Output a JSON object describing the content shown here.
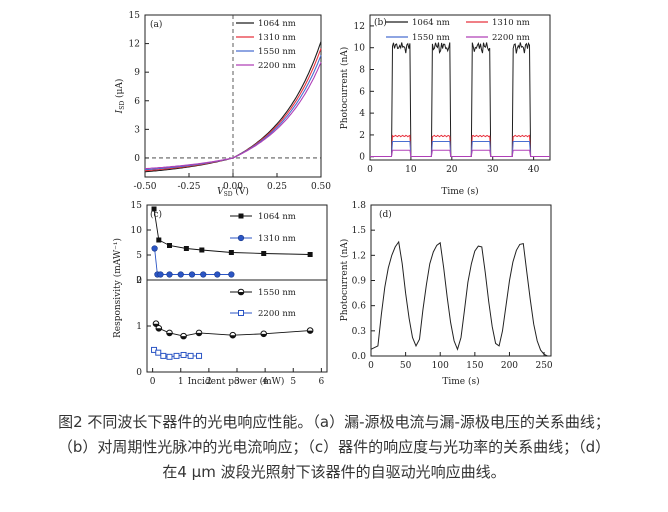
{
  "chart_data": [
    {
      "panel": "(a)",
      "type": "line",
      "xlabel_main": "V",
      "xlabel_sub": "SD",
      "xlabel_unit": " (V)",
      "ylabel_main": "I",
      "ylabel_sub": "SD",
      "ylabel_unit": " (μA)",
      "xlim": [
        -0.5,
        0.5
      ],
      "ylim": [
        -2,
        15
      ],
      "xticks": [
        "-0.50",
        "-0.25",
        "0.00",
        "0.25",
        "0.50"
      ],
      "yticks": [
        "0",
        "3",
        "6",
        "9",
        "12",
        "15"
      ],
      "legend": [
        "1064 nm",
        "1310 nm",
        "1550 nm",
        "2200 nm"
      ],
      "colors": [
        "#1f1f1f",
        "#e8333f",
        "#4a6fd0",
        "#b040b8"
      ],
      "curve_params": [
        {
          "a": 7.0,
          "b": 4.4,
          "c": 1.3,
          "d": 2.4
        },
        {
          "a": 6.5,
          "b": 4.4,
          "c": 1.2,
          "d": 2.4
        },
        {
          "a": 6.0,
          "b": 4.4,
          "c": 1.1,
          "d": 2.4
        },
        {
          "a": 5.5,
          "b": 4.4,
          "c": 1.0,
          "d": 2.4
        }
      ]
    },
    {
      "panel": "(b)",
      "type": "line",
      "xlabel": "Time (s)",
      "ylabel": "Photocurrent (nA)",
      "xlim": [
        0,
        44
      ],
      "ylim": [
        -0.3,
        13
      ],
      "xticks": [
        "0",
        "10",
        "20",
        "30",
        "40"
      ],
      "yticks": [
        "0",
        "2",
        "4",
        "6",
        "8",
        "10",
        "12"
      ],
      "legend": [
        "1064 nm",
        "1310 nm",
        "1550 nm",
        "2200 nm"
      ],
      "colors": [
        "#1f1f1f",
        "#e8333f",
        "#4a6fd0",
        "#b040b8"
      ],
      "on_intervals": [
        [
          5.5,
          9.8
        ],
        [
          15.2,
          19.6
        ],
        [
          25.0,
          29.4
        ],
        [
          34.8,
          39.2
        ]
      ],
      "on_levels": [
        10.2,
        1.9,
        1.4,
        0.6
      ]
    },
    {
      "panel": "(c)",
      "type": "scatter",
      "xlabel": "Incident power (mW)",
      "ylabel": "Responsivity (mAW⁻¹)",
      "xlim": [
        -0.2,
        6.2
      ],
      "xticks": [
        "0",
        "1",
        "2",
        "3",
        "4",
        "5",
        "6"
      ],
      "top": {
        "ylim": [
          0,
          15
        ],
        "yticks": [
          "0",
          "5",
          "10",
          "15"
        ],
        "series": [
          {
            "name": "1064 nm",
            "color": "#111111",
            "marker": "square",
            "x": [
              0.05,
              0.22,
              0.6,
              1.2,
              1.75,
              2.8,
              3.95,
              5.6
            ],
            "y": [
              14.2,
              8.0,
              6.9,
              6.3,
              6.0,
              5.5,
              5.3,
              5.1
            ]
          },
          {
            "name": "1310 nm",
            "color": "#2b55c4",
            "marker": "circle",
            "x": [
              0.07,
              0.17,
              0.28,
              0.6,
              1.0,
              1.4,
              1.8,
              2.3,
              2.8
            ],
            "y": [
              6.3,
              1.1,
              1.1,
              1.1,
              1.1,
              1.1,
              1.1,
              1.1,
              1.1
            ]
          }
        ]
      },
      "bottom": {
        "ylim": [
          0,
          2
        ],
        "yticks": [
          "0",
          "1",
          "2"
        ],
        "series": [
          {
            "name": "1550 nm",
            "color": "#111111",
            "marker": "halfcircle",
            "x": [
              0.12,
              0.22,
              0.6,
              1.1,
              1.65,
              2.85,
              3.95,
              5.6
            ],
            "y": [
              1.05,
              0.95,
              0.85,
              0.78,
              0.85,
              0.8,
              0.83,
              0.9
            ]
          },
          {
            "name": "2200 nm",
            "color": "#2b55c4",
            "marker": "opensquare",
            "x": [
              0.05,
              0.2,
              0.38,
              0.6,
              0.85,
              1.1,
              1.35,
              1.65
            ],
            "y": [
              0.48,
              0.42,
              0.35,
              0.33,
              0.35,
              0.37,
              0.35,
              0.35
            ]
          }
        ]
      }
    },
    {
      "panel": "(d)",
      "type": "line",
      "xlabel": "Time (s)",
      "ylabel": "Photocurrent (nA)",
      "xlim": [
        0,
        260
      ],
      "ylim": [
        0,
        1.8
      ],
      "xticks": [
        "0",
        "50",
        "100",
        "150",
        "200",
        "250"
      ],
      "yticks": [
        "0.0",
        "0.3",
        "0.6",
        "0.9",
        "1.2",
        "1.5",
        "1.8"
      ],
      "color": "#222222",
      "x": [
        0,
        5,
        10,
        15,
        20,
        25,
        30,
        35,
        40,
        45,
        50,
        55,
        60,
        65,
        70,
        75,
        80,
        85,
        90,
        95,
        100,
        105,
        110,
        115,
        120,
        125,
        130,
        135,
        140,
        145,
        150,
        155,
        160,
        165,
        170,
        175,
        180,
        185,
        190,
        195,
        200,
        205,
        210,
        215,
        220,
        225,
        230,
        235,
        240,
        245,
        250,
        255,
        260
      ],
      "y": [
        0.08,
        0.1,
        0.12,
        0.5,
        0.82,
        1.05,
        1.2,
        1.3,
        1.36,
        1.1,
        0.75,
        0.45,
        0.22,
        0.12,
        0.2,
        0.55,
        0.85,
        1.1,
        1.24,
        1.32,
        1.35,
        1.05,
        0.7,
        0.4,
        0.18,
        0.08,
        0.22,
        0.55,
        0.88,
        1.1,
        1.25,
        1.31,
        1.3,
        1.0,
        0.65,
        0.35,
        0.15,
        0.12,
        0.3,
        0.6,
        0.9,
        1.12,
        1.26,
        1.33,
        1.34,
        1.0,
        0.68,
        0.38,
        0.18,
        0.07,
        0.02,
        0.0,
        0.0
      ]
    }
  ],
  "caption": {
    "line1": "图2 不同波长下器件的光电响应性能。（a）漏-源极电流与漏-源极电压的关系曲线；",
    "line2": "（b）对周期性光脉冲的光电流响应；（c）器件的响应度与光功率的关系曲线；（d）",
    "line3": "在4 μm 波段光照射下该器件的自驱动光响应曲线。"
  }
}
